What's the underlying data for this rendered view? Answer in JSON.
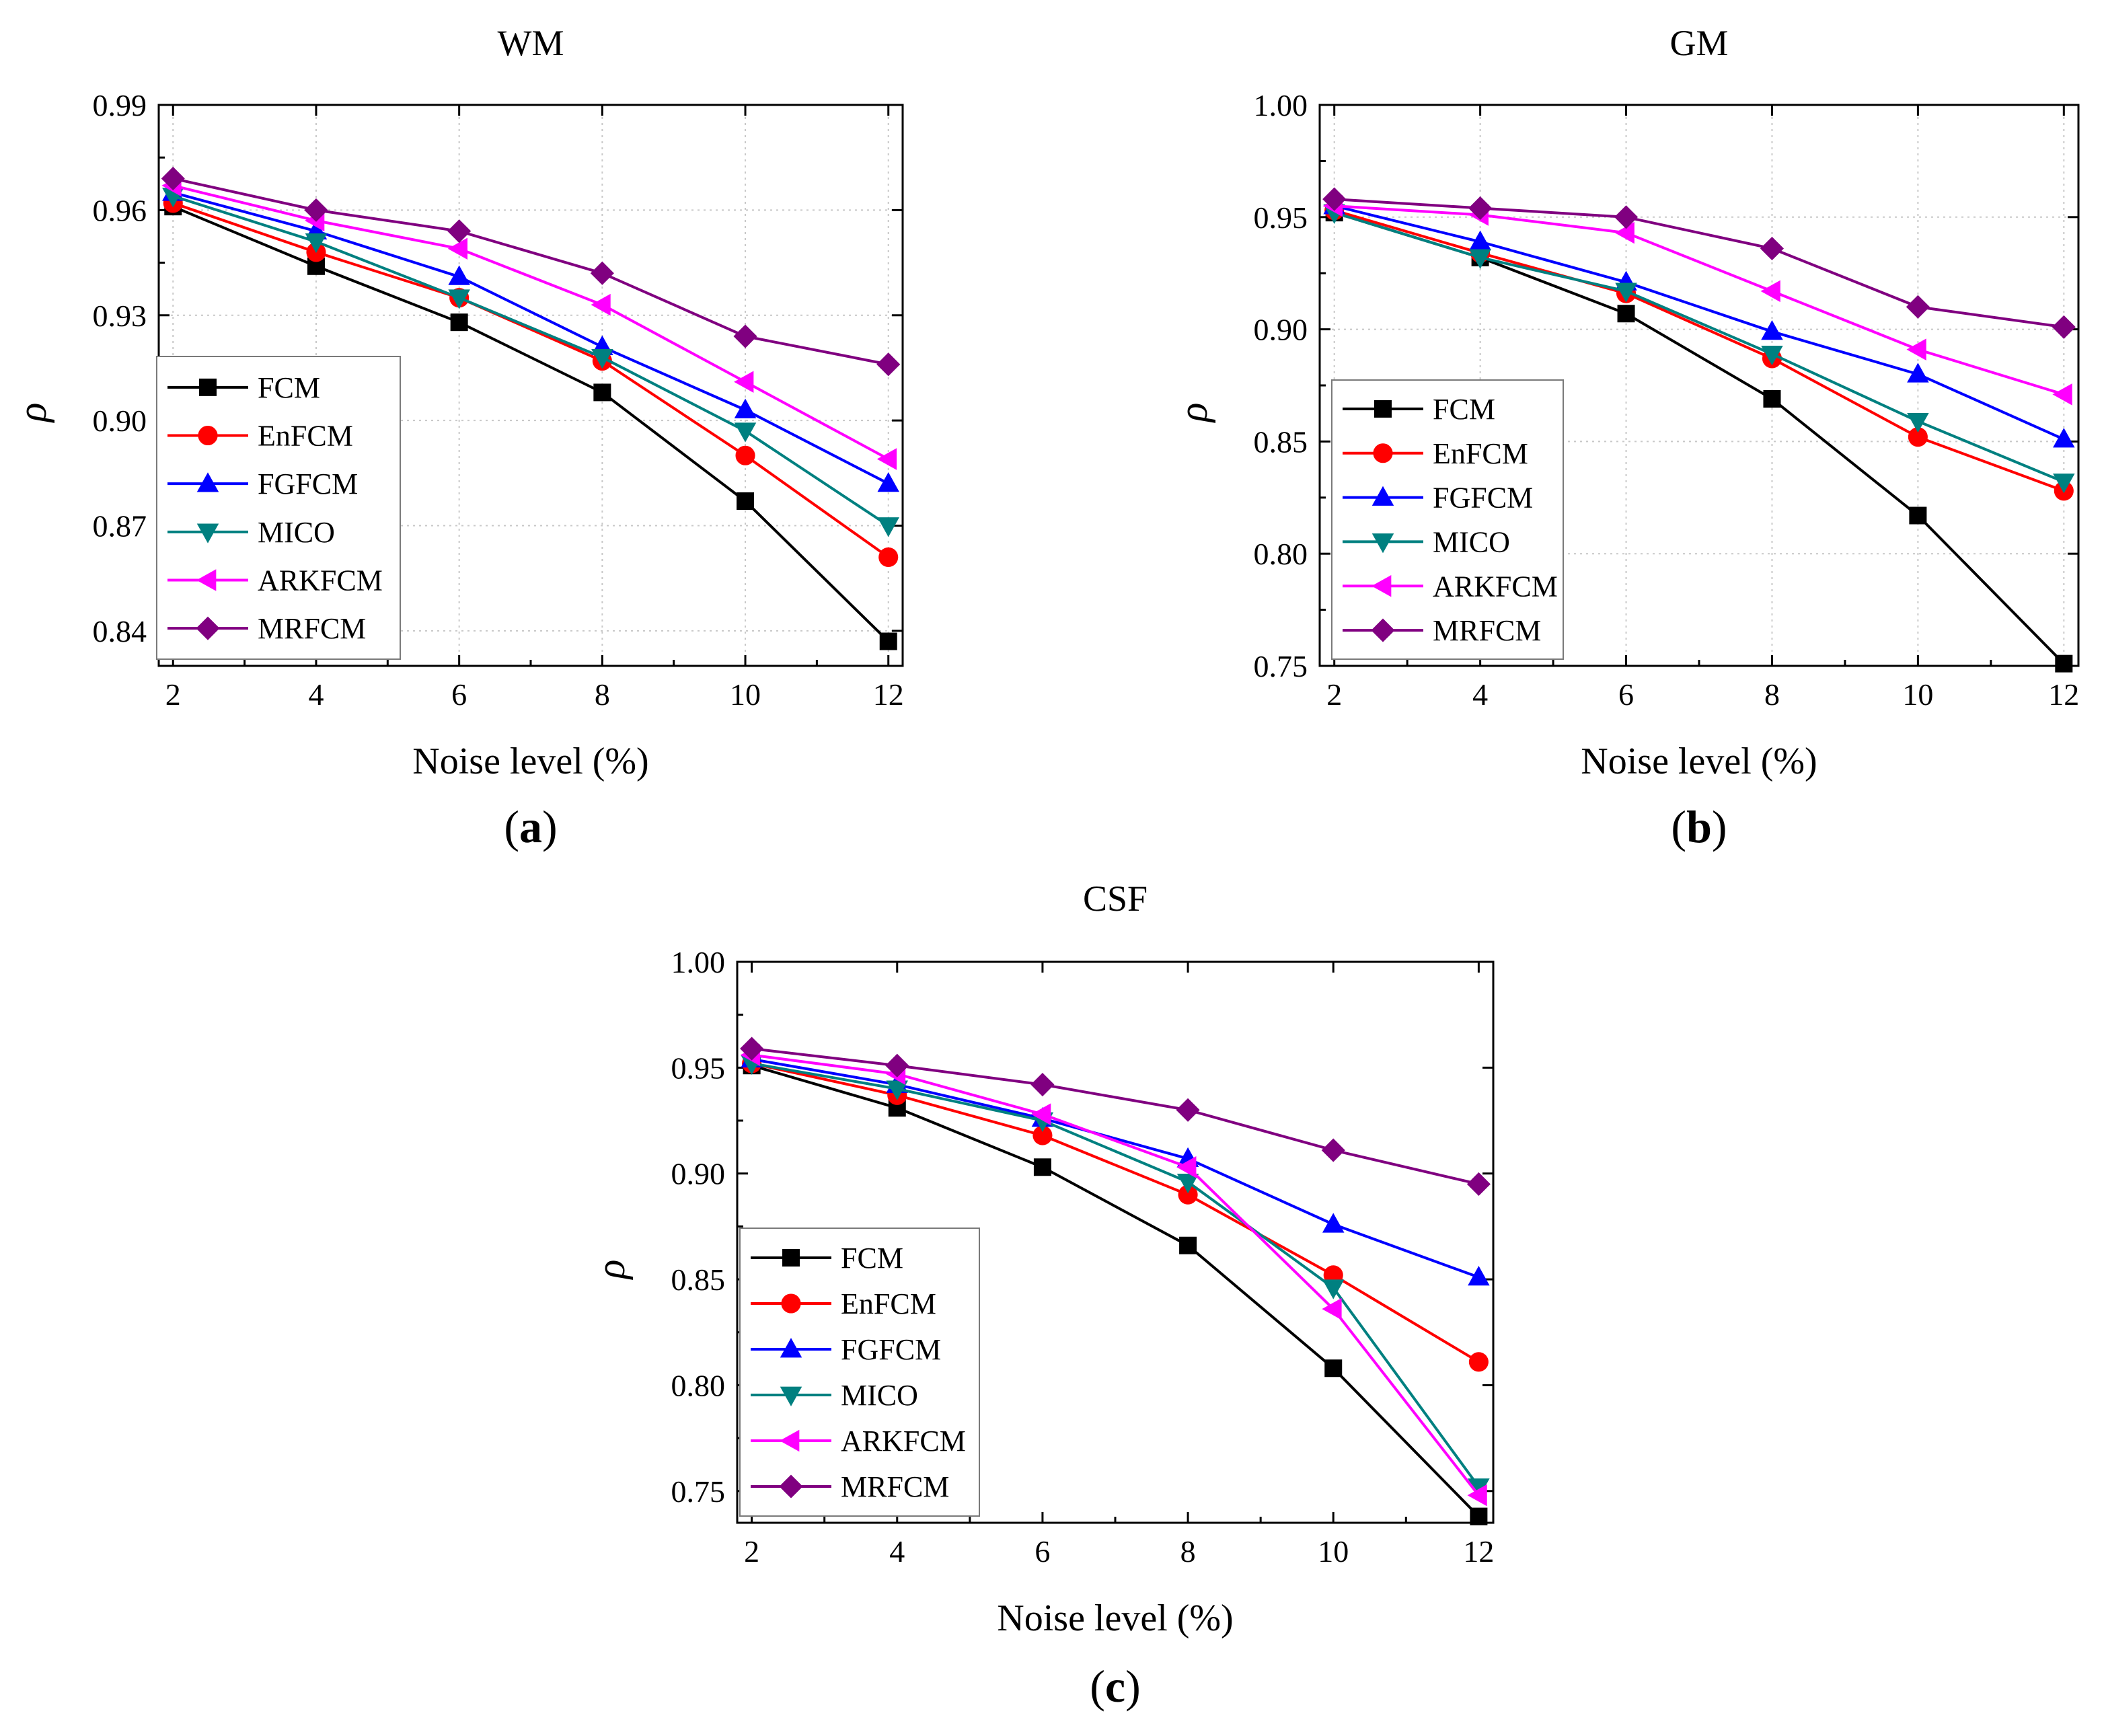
{
  "chart_data": [
    {
      "type": "line",
      "title": "WM",
      "panel_label": "a",
      "xlabel": "Noise level (%)",
      "ylabel": "ρ",
      "x": [
        2,
        4,
        6,
        8,
        10,
        12
      ],
      "xticks": [
        "2",
        "4",
        "6",
        "8",
        "10",
        "12"
      ],
      "ylim": [
        0.83,
        0.99
      ],
      "yticks": [
        "0.84",
        "0.87",
        "0.90",
        "0.93",
        "0.96",
        "0.99"
      ],
      "grid": true,
      "legend": "bottom-left",
      "series": [
        {
          "name": "FCM",
          "values": [
            0.961,
            0.944,
            0.928,
            0.908,
            0.877,
            0.837
          ]
        },
        {
          "name": "EnFCM",
          "values": [
            0.962,
            0.948,
            0.935,
            0.917,
            0.89,
            0.861
          ]
        },
        {
          "name": "FGFCM",
          "values": [
            0.965,
            0.954,
            0.941,
            0.921,
            0.903,
            0.882
          ]
        },
        {
          "name": "MICO",
          "values": [
            0.964,
            0.951,
            0.935,
            0.918,
            0.897,
            0.87
          ]
        },
        {
          "name": "ARKFCM",
          "values": [
            0.967,
            0.957,
            0.949,
            0.933,
            0.911,
            0.889
          ]
        },
        {
          "name": "MRFCM",
          "values": [
            0.969,
            0.96,
            0.954,
            0.942,
            0.924,
            0.916
          ]
        }
      ]
    },
    {
      "type": "line",
      "title": "GM",
      "panel_label": "b",
      "xlabel": "Noise level (%)",
      "ylabel": "ρ",
      "x": [
        2,
        4,
        6,
        8,
        10,
        12
      ],
      "xticks": [
        "2",
        "4",
        "6",
        "8",
        "10",
        "12"
      ],
      "ylim": [
        0.75,
        1.0
      ],
      "yticks": [
        "0.75",
        "0.80",
        "0.85",
        "0.90",
        "0.95",
        "1.00"
      ],
      "grid": true,
      "legend": "bottom-left",
      "series": [
        {
          "name": "FCM",
          "values": [
            0.952,
            0.932,
            0.907,
            0.869,
            0.817,
            0.751
          ]
        },
        {
          "name": "EnFCM",
          "values": [
            0.953,
            0.934,
            0.916,
            0.887,
            0.852,
            0.828
          ]
        },
        {
          "name": "FGFCM",
          "values": [
            0.955,
            0.939,
            0.921,
            0.899,
            0.88,
            0.851
          ]
        },
        {
          "name": "MICO",
          "values": [
            0.952,
            0.932,
            0.917,
            0.889,
            0.859,
            0.832
          ]
        },
        {
          "name": "ARKFCM",
          "values": [
            0.955,
            0.951,
            0.943,
            0.917,
            0.891,
            0.871
          ]
        },
        {
          "name": "MRFCM",
          "values": [
            0.958,
            0.954,
            0.95,
            0.936,
            0.91,
            0.901
          ]
        }
      ]
    },
    {
      "type": "line",
      "title": "CSF",
      "panel_label": "c",
      "xlabel": "Noise level (%)",
      "ylabel": "ρ",
      "x": [
        2,
        4,
        6,
        8,
        10,
        12
      ],
      "xticks": [
        "2",
        "4",
        "6",
        "8",
        "10",
        "12"
      ],
      "ylim": [
        0.735,
        1.0
      ],
      "yticks": [
        "0.75",
        "0.80",
        "0.85",
        "0.90",
        "0.95",
        "1.00"
      ],
      "grid": false,
      "legend": "bottom-left",
      "series": [
        {
          "name": "FCM",
          "values": [
            0.951,
            0.931,
            0.903,
            0.866,
            0.808,
            0.738
          ]
        },
        {
          "name": "EnFCM",
          "values": [
            0.952,
            0.937,
            0.918,
            0.89,
            0.852,
            0.811
          ]
        },
        {
          "name": "FGFCM",
          "values": [
            0.954,
            0.942,
            0.926,
            0.907,
            0.876,
            0.851
          ]
        },
        {
          "name": "MICO",
          "values": [
            0.952,
            0.94,
            0.925,
            0.896,
            0.846,
            0.752
          ]
        },
        {
          "name": "ARKFCM",
          "values": [
            0.956,
            0.947,
            0.928,
            0.903,
            0.836,
            0.748
          ]
        },
        {
          "name": "MRFCM",
          "values": [
            0.959,
            0.951,
            0.942,
            0.93,
            0.911,
            0.895
          ]
        }
      ]
    }
  ],
  "styles": {
    "FCM": {
      "color": "#000000",
      "marker": "square"
    },
    "EnFCM": {
      "color": "#ff0000",
      "marker": "circle"
    },
    "FGFCM": {
      "color": "#0000ff",
      "marker": "triangle-up"
    },
    "MICO": {
      "color": "#008080",
      "marker": "triangle-down"
    },
    "ARKFCM": {
      "color": "#ff00ff",
      "marker": "triangle-left"
    },
    "MRFCM": {
      "color": "#800080",
      "marker": "diamond"
    }
  }
}
